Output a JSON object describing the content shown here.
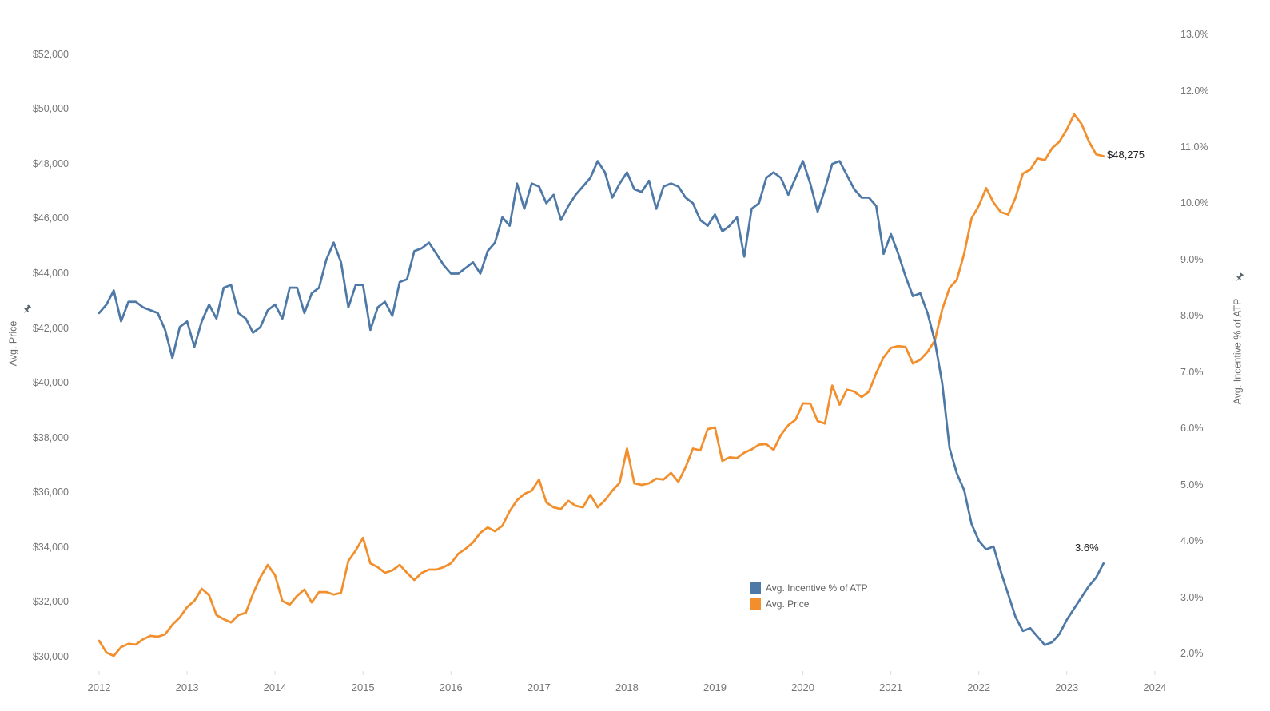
{
  "chart_data": {
    "type": "line",
    "title": "",
    "x_axis": {
      "unit": "month",
      "start": "2012-01",
      "end": "2023-06",
      "tick_labels": [
        "2012",
        "2013",
        "2014",
        "2015",
        "2016",
        "2017",
        "2018",
        "2019",
        "2020",
        "2021",
        "2022",
        "2023",
        "2024"
      ]
    },
    "left_axis": {
      "title": "Avg. Price",
      "pinned": true,
      "min": 30000,
      "max": 52000,
      "tick_values": [
        52000,
        50000,
        48000,
        46000,
        44000,
        42000,
        40000,
        38000,
        36000,
        34000,
        32000,
        30000
      ],
      "tick_labels": [
        "$52,000",
        "$50,000",
        "$48,000",
        "$46,000",
        "$44,000",
        "$42,000",
        "$40,000",
        "$38,000",
        "$36,000",
        "$34,000",
        "$32,000",
        "$30,000"
      ]
    },
    "right_axis": {
      "title": "Avg. Incentive % of ATP",
      "pinned": true,
      "min": 2,
      "max": 13,
      "tick_values": [
        13,
        12,
        11,
        10,
        9,
        8,
        7,
        6,
        5,
        4,
        3,
        2
      ],
      "tick_labels": [
        "13.0%",
        "12.0%",
        "11.0%",
        "10.0%",
        "9.0%",
        "8.0%",
        "7.0%",
        "6.0%",
        "5.0%",
        "4.0%",
        "3.0%",
        "2.0%"
      ]
    },
    "series": [
      {
        "name": "Avg. Incentive % of ATP",
        "axis": "right",
        "color": "#4e79a7",
        "values": [
          8.05,
          8.2,
          8.45,
          7.9,
          8.25,
          8.25,
          8.15,
          8.1,
          8.05,
          7.75,
          7.25,
          7.8,
          7.9,
          7.45,
          7.9,
          8.2,
          7.95,
          8.5,
          8.55,
          8.05,
          7.95,
          7.7,
          7.8,
          8.1,
          8.2,
          7.95,
          8.5,
          8.5,
          8.05,
          8.4,
          8.5,
          9.0,
          9.3,
          8.95,
          8.15,
          8.55,
          8.55,
          7.75,
          8.15,
          8.25,
          8.0,
          8.6,
          8.65,
          9.15,
          9.2,
          9.3,
          9.1,
          8.9,
          8.75,
          8.75,
          8.85,
          8.95,
          8.75,
          9.15,
          9.3,
          9.75,
          9.6,
          10.35,
          9.9,
          10.35,
          10.3,
          10.0,
          10.15,
          9.7,
          9.95,
          10.15,
          10.3,
          10.45,
          10.75,
          10.55,
          10.1,
          10.35,
          10.55,
          10.25,
          10.2,
          10.4,
          9.9,
          10.3,
          10.35,
          10.3,
          10.1,
          10.0,
          9.7,
          9.6,
          9.8,
          9.5,
          9.6,
          9.75,
          9.05,
          9.9,
          10.0,
          10.45,
          10.55,
          10.45,
          10.15,
          10.45,
          10.75,
          10.35,
          9.85,
          10.25,
          10.7,
          10.75,
          10.5,
          10.25,
          10.1,
          10.1,
          9.95,
          9.1,
          9.45,
          9.1,
          8.7,
          8.35,
          8.4,
          8.05,
          7.55,
          6.8,
          5.65,
          5.2,
          4.9,
          4.3,
          4.0,
          3.85,
          3.9,
          3.45,
          3.05,
          2.65,
          2.4,
          2.45,
          2.3,
          2.15,
          2.2,
          2.35,
          2.6,
          2.8,
          3.0,
          3.2,
          3.35,
          3.6
        ]
      },
      {
        "name": "Avg. Price",
        "axis": "left",
        "color": "#f28e2b",
        "values": [
          30580,
          30150,
          30030,
          30350,
          30470,
          30440,
          30640,
          30760,
          30730,
          30820,
          31170,
          31430,
          31810,
          32040,
          32480,
          32250,
          31520,
          31370,
          31250,
          31520,
          31600,
          32300,
          32900,
          33350,
          32970,
          32040,
          31900,
          32220,
          32450,
          31980,
          32360,
          32360,
          32270,
          32330,
          33500,
          33880,
          34340,
          33410,
          33270,
          33060,
          33150,
          33350,
          33060,
          32800,
          33060,
          33180,
          33180,
          33270,
          33410,
          33760,
          33940,
          34170,
          34520,
          34720,
          34580,
          34780,
          35310,
          35710,
          35940,
          36060,
          36470,
          35630,
          35450,
          35390,
          35690,
          35510,
          35450,
          35910,
          35450,
          35710,
          36060,
          36350,
          37600,
          36330,
          36270,
          36330,
          36500,
          36470,
          36710,
          36380,
          36920,
          37600,
          37530,
          38310,
          38370,
          37150,
          37280,
          37250,
          37450,
          37570,
          37740,
          37760,
          37550,
          38100,
          38450,
          38650,
          39250,
          39240,
          38600,
          38510,
          39900,
          39200,
          39750,
          39680,
          39480,
          39680,
          40350,
          40930,
          41280,
          41340,
          41310,
          40700,
          40840,
          41130,
          41550,
          42680,
          43470,
          43760,
          44720,
          46000,
          46470,
          47110,
          46580,
          46230,
          46140,
          46760,
          47640,
          47780,
          48190,
          48130,
          48570,
          48810,
          49250,
          49800,
          49450,
          48810,
          48340,
          48275
        ]
      }
    ],
    "legend": {
      "position": "inside-bottom-center",
      "items": [
        {
          "label": "Avg. Incentive % of ATP",
          "color": "#4e79a7"
        },
        {
          "label": "Avg. Price",
          "color": "#f28e2b"
        }
      ]
    },
    "annotations": {
      "price_end_label": "$48,275",
      "incentive_end_label": "3.6%"
    },
    "grid": false
  },
  "colors": {
    "background": "#ffffff",
    "axis_text": "#767676",
    "annotation_text": "#1f1f1f",
    "pin_icon": "#56646e",
    "tick_mark": "#dcdcdc"
  }
}
